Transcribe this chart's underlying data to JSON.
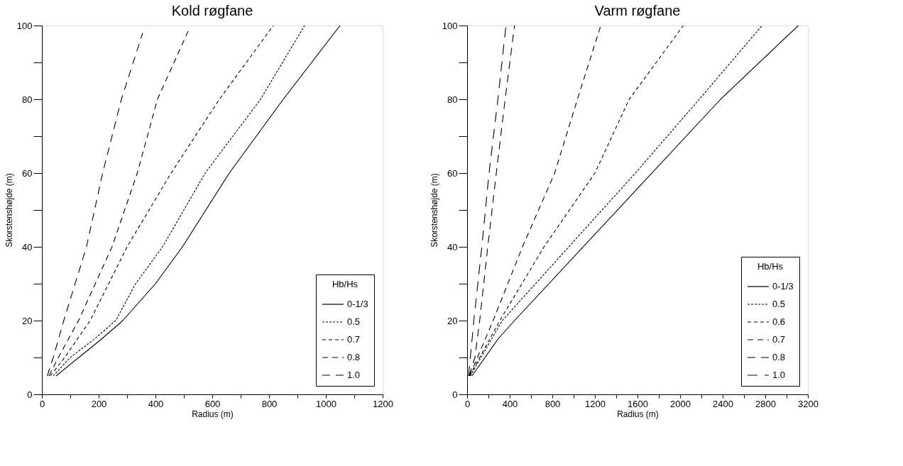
{
  "chart_data": [
    {
      "type": "line",
      "title": "Kold røgfane",
      "xlabel": "Radius (m)",
      "ylabel": "Skorstenshøjde (m)",
      "legend_title": "Hb/Hs",
      "legend": "bottom right",
      "grid": false,
      "marker": "none",
      "xlim": [
        0,
        1200
      ],
      "ylim": [
        0,
        100
      ],
      "xticks": [
        0,
        {
          "value": 100,
          "label": null
        },
        200,
        {
          "value": 300,
          "label": null
        },
        400,
        {
          "value": 500,
          "label": null
        },
        600,
        {
          "value": 700,
          "label": null
        },
        800,
        {
          "value": 900,
          "label": null
        },
        1000,
        {
          "value": 1100,
          "label": null
        },
        1200
      ],
      "yticks": [
        0,
        {
          "value": 10,
          "label": null
        },
        20,
        {
          "value": 30,
          "label": null
        },
        40,
        {
          "value": 50,
          "label": null
        },
        60,
        {
          "value": 70,
          "label": null
        },
        80,
        {
          "value": 90,
          "label": null
        },
        100
      ],
      "series": [
        {
          "name": "0-1/3",
          "color": "#000000",
          "line_style": "solid",
          "x": [
            50,
            130,
            210,
            285,
            400,
            495,
            660,
            850,
            1050
          ],
          "values": [
            5,
            10,
            15,
            20,
            30,
            40,
            60,
            80,
            100
          ]
        },
        {
          "name": "0.5",
          "color": "#000000",
          "line_style": "dotted",
          "x": [
            40,
            100,
            185,
            260,
            330,
            425,
            575,
            770,
            925
          ],
          "values": [
            5,
            10,
            15,
            20,
            30,
            40,
            60,
            80,
            100
          ]
        },
        {
          "name": "0.7",
          "color": "#000000",
          "line_style": "dashed",
          "x": [
            30,
            80,
            170,
            300,
            455,
            625,
            815
          ],
          "values": [
            5,
            10,
            20,
            40,
            60,
            80,
            100
          ]
        },
        {
          "name": "0.8",
          "color": "#000000",
          "line_style": "dashed",
          "x": [
            25,
            58,
            129,
            247,
            336,
            407,
            518
          ],
          "values": [
            5,
            10,
            20,
            40,
            60,
            80,
            99
          ]
        },
        {
          "name": "1.0",
          "color": "#000000",
          "line_style": "dashed",
          "x": [
            19,
            40,
            77,
            157,
            214,
            280,
            355
          ],
          "values": [
            5,
            10,
            20,
            40,
            60,
            80,
            98
          ]
        }
      ]
    },
    {
      "type": "line",
      "title": "Varm røgfane",
      "xlabel": "Radius (m)",
      "ylabel": "Skorstenshøjde (m)",
      "legend_title": "Hb/Hs",
      "legend": "bottom right",
      "grid": false,
      "marker": "none",
      "xlim": [
        0,
        3200
      ],
      "ylim": [
        0,
        100
      ],
      "xticks": [
        0,
        {
          "value": 200,
          "label": null
        },
        400,
        {
          "value": 600,
          "label": null
        },
        800,
        {
          "value": 1000,
          "label": null
        },
        1200,
        {
          "value": 1400,
          "label": null
        },
        1600,
        {
          "value": 1800,
          "label": null
        },
        2000,
        {
          "value": 2200,
          "label": null
        },
        2400,
        {
          "value": 2600,
          "label": null
        },
        2800,
        {
          "value": 3000,
          "label": null
        },
        3200
      ],
      "yticks": [
        0,
        {
          "value": 10,
          "label": null
        },
        20,
        {
          "value": 30,
          "label": null
        },
        40,
        {
          "value": 50,
          "label": null
        },
        60,
        {
          "value": 70,
          "label": null
        },
        80,
        {
          "value": 90,
          "label": null
        },
        100
      ],
      "series": [
        {
          "name": "0-1/3",
          "color": "#000000",
          "line_style": "solid",
          "x": [
            45,
            290,
            445,
            2380,
            3110
          ],
          "values": [
            5,
            15,
            20,
            80,
            100
          ]
        },
        {
          "name": "0.5",
          "color": "#000000",
          "line_style": "dotted",
          "x": [
            30,
            330,
            1580,
            2180,
            2770
          ],
          "values": [
            5,
            20,
            60,
            80,
            100
          ]
        },
        {
          "name": "0.6",
          "color": "#000000",
          "line_style": "dashed",
          "x": [
            23,
            307,
            722,
            1200,
            1522,
            2030
          ],
          "values": [
            5,
            20,
            40,
            60,
            80,
            100
          ]
        },
        {
          "name": "0.7",
          "color": "#000000",
          "line_style": "dashed",
          "x": [
            23,
            244,
            520,
            822,
            1036,
            1255
          ],
          "values": [
            5,
            20,
            40,
            60,
            80,
            100
          ]
        },
        {
          "name": "0.8",
          "color": "#000000",
          "line_style": "dashed",
          "x": [
            18,
            73,
            118,
            194,
            274,
            357,
            445
          ],
          "values": [
            5,
            10,
            20,
            40,
            60,
            80,
            100
          ]
        },
        {
          "name": "1.0",
          "color": "#000000",
          "line_style": "dashed",
          "x": [
            13,
            30,
            63,
            138,
            206,
            289,
            365
          ],
          "values": [
            5,
            10,
            20,
            40,
            60,
            80,
            100
          ]
        }
      ]
    }
  ]
}
